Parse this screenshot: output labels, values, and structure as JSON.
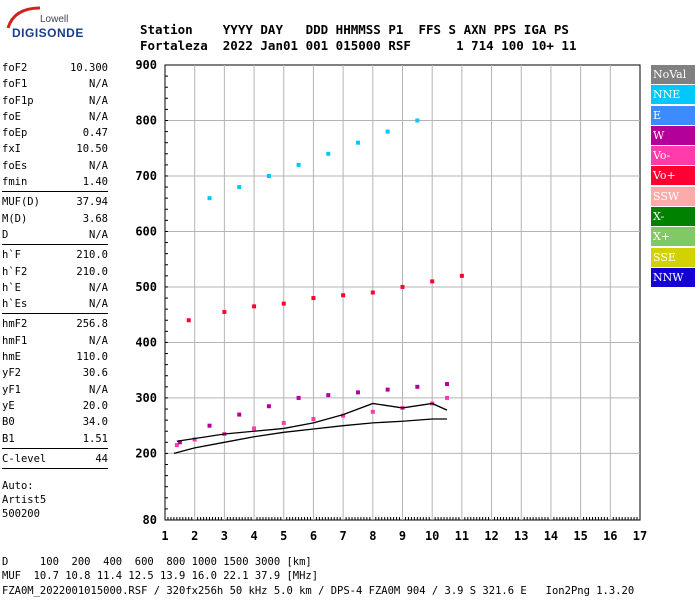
{
  "logo": {
    "brand": "Lowell",
    "product": "DIGISONDE"
  },
  "header": {
    "line1": "Station    YYYY DAY   DDD HHMMSS P1  FFS S AXN PPS IGA PS",
    "line2": "Fortaleza  2022 Jan01 001 015000 RSF      1 714 100 10+ 11"
  },
  "params": {
    "group1": [
      {
        "label": "foF2",
        "value": "10.300"
      },
      {
        "label": "foF1",
        "value": "N/A"
      },
      {
        "label": "foF1p",
        "value": "N/A"
      },
      {
        "label": "foE",
        "value": "N/A"
      },
      {
        "label": "foEp",
        "value": "0.47"
      },
      {
        "label": "fxI",
        "value": "10.50"
      },
      {
        "label": "foEs",
        "value": "N/A"
      },
      {
        "label": "fmin",
        "value": "1.40"
      }
    ],
    "group2": [
      {
        "label": "MUF(D)",
        "value": "37.94"
      },
      {
        "label": "M(D)",
        "value": "3.68"
      },
      {
        "label": "D",
        "value": "N/A"
      }
    ],
    "group3": [
      {
        "label": "h`F",
        "value": "210.0"
      },
      {
        "label": "h`F2",
        "value": "210.0"
      },
      {
        "label": "h`E",
        "value": "N/A"
      },
      {
        "label": "h`Es",
        "value": "N/A"
      }
    ],
    "group4": [
      {
        "label": "hmF2",
        "value": "256.8"
      },
      {
        "label": "hmF1",
        "value": "N/A"
      },
      {
        "label": "hmE",
        "value": "110.0"
      },
      {
        "label": "yF2",
        "value": "30.6"
      },
      {
        "label": "yF1",
        "value": "N/A"
      },
      {
        "label": "yE",
        "value": "20.0"
      },
      {
        "label": "B0",
        "value": "34.0"
      },
      {
        "label": "B1",
        "value": "1.51"
      }
    ],
    "group5": [
      {
        "label": "C-level",
        "value": "44"
      }
    ],
    "auto": [
      "Auto:",
      "Artist5",
      "500200"
    ]
  },
  "legend": [
    {
      "label": "NoVal",
      "color": "#808080"
    },
    {
      "label": "NNE",
      "color": "#00c8ff"
    },
    {
      "label": "E",
      "color": "#3c8cff"
    },
    {
      "label": "W",
      "color": "#b4009b"
    },
    {
      "label": "Vo-",
      "color": "#ff3caa"
    },
    {
      "label": "Vo+",
      "color": "#ff0032"
    },
    {
      "label": "SSW",
      "color": "#ffaaaa"
    },
    {
      "label": "X-",
      "color": "#008200"
    },
    {
      "label": "X+",
      "color": "#82c864"
    },
    {
      "label": "SSE",
      "color": "#d2d200"
    },
    {
      "label": "NNW",
      "color": "#1400d2"
    }
  ],
  "footer": {
    "line1": "D     100  200  400  600  800 1000 1500 3000 [km]",
    "line2": "MUF  10.7 10.8 11.4 12.5 13.9 16.0 22.1 37.9 [MHz]",
    "line3": "FZA0M_2022001015000.RSF / 320fx256h 50 kHz 5.0 km / DPS-4 FZA0M 904 / 3.9 S 321.6 E   Ion2Png 1.3.20"
  },
  "chart_data": {
    "type": "scatter",
    "title": "",
    "xlabel": "",
    "ylabel": "",
    "xlim": [
      1,
      17
    ],
    "ylim": [
      80,
      900
    ],
    "x_ticks": [
      1,
      2,
      3,
      4,
      5,
      6,
      7,
      8,
      9,
      10,
      11,
      12,
      13,
      14,
      15,
      16,
      17
    ],
    "y_ticks": [
      80,
      200,
      300,
      400,
      500,
      600,
      700,
      800,
      900
    ],
    "grid": true,
    "scale": "frequency linear, virtual height linear",
    "series": [
      {
        "name": "Vo-",
        "x": [
          1.4,
          2.0,
          3.0,
          4.0,
          5.0,
          6.0,
          7.0,
          8.0,
          9.0,
          10.0,
          10.5
        ],
        "y": [
          215,
          225,
          235,
          245,
          255,
          262,
          268,
          275,
          282,
          290,
          300
        ]
      },
      {
        "name": "W",
        "x": [
          1.5,
          2.5,
          3.5,
          4.5,
          5.5,
          6.5,
          7.5,
          8.5,
          9.5,
          10.5
        ],
        "y": [
          220,
          250,
          270,
          285,
          300,
          305,
          310,
          315,
          320,
          325
        ]
      },
      {
        "name": "Vo+",
        "x": [
          1.8,
          3.0,
          4.0,
          5.0,
          6.0,
          7.0,
          8.0,
          9.0,
          10.0,
          11.0
        ],
        "y": [
          440,
          455,
          465,
          470,
          480,
          485,
          490,
          500,
          510,
          520
        ]
      },
      {
        "name": "NNE",
        "x": [
          2.5,
          3.5,
          4.5,
          5.5,
          6.5,
          7.5,
          8.5,
          9.5
        ],
        "y": [
          660,
          680,
          700,
          720,
          740,
          760,
          780,
          800
        ]
      }
    ],
    "lines": [
      {
        "name": "profile",
        "x": [
          1.3,
          2.0,
          3.0,
          4.0,
          5.0,
          6.0,
          7.0,
          8.0,
          9.0,
          10.0,
          10.5
        ],
        "y": [
          200,
          210,
          220,
          230,
          238,
          244,
          250,
          255,
          258,
          262,
          262
        ]
      },
      {
        "name": "trace",
        "x": [
          1.4,
          3.0,
          5.0,
          6.0,
          7.0,
          8.0,
          9.0,
          10.0,
          10.5
        ],
        "y": [
          222,
          235,
          245,
          255,
          270,
          290,
          282,
          290,
          278
        ]
      }
    ]
  }
}
